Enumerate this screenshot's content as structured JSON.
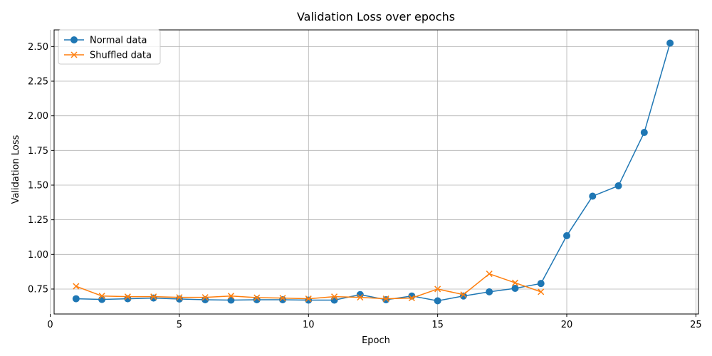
{
  "chart_data": {
    "type": "line",
    "title": "Validation Loss over epochs",
    "xlabel": "Epoch",
    "ylabel": "Validation Loss",
    "xlim": [
      0.15,
      25.1
    ],
    "ylim": [
      0.57,
      2.62
    ],
    "xticks": [
      0,
      5,
      10,
      15,
      20,
      25
    ],
    "xtick_labels": [
      "0",
      "5",
      "10",
      "15",
      "20",
      "25"
    ],
    "yticks": [
      0.75,
      1.0,
      1.25,
      1.5,
      1.75,
      2.0,
      2.25,
      2.5
    ],
    "ytick_labels": [
      "0.75",
      "1.00",
      "1.25",
      "1.50",
      "1.75",
      "2.00",
      "2.25",
      "2.50"
    ],
    "grid": true,
    "legend_position": "top-left",
    "series": [
      {
        "name": "Normal data",
        "color": "#1f77b4",
        "marker": "circle",
        "x": [
          1,
          2,
          3,
          4,
          5,
          6,
          7,
          8,
          9,
          10,
          11,
          12,
          13,
          14,
          15,
          16,
          17,
          18,
          19,
          20,
          21,
          22,
          23,
          24
        ],
        "y": [
          0.68,
          0.675,
          0.68,
          0.685,
          0.678,
          0.673,
          0.67,
          0.673,
          0.673,
          0.67,
          0.67,
          0.71,
          0.673,
          0.7,
          0.665,
          0.7,
          0.73,
          0.755,
          0.79,
          1.135,
          1.42,
          1.495,
          1.88,
          2.525
        ]
      },
      {
        "name": "Shuffled data",
        "color": "#ff7f0e",
        "marker": "x",
        "x": [
          1,
          2,
          3,
          4,
          5,
          6,
          7,
          8,
          9,
          10,
          11,
          12,
          13,
          14,
          15,
          16,
          17,
          18,
          19
        ],
        "y": [
          0.77,
          0.7,
          0.695,
          0.695,
          0.69,
          0.69,
          0.7,
          0.688,
          0.685,
          0.68,
          0.695,
          0.69,
          0.68,
          0.685,
          0.75,
          0.71,
          0.86,
          0.795,
          0.73
        ]
      }
    ]
  }
}
